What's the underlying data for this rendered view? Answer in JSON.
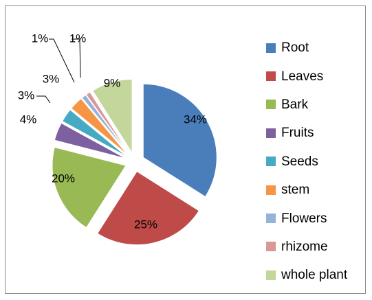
{
  "chart_data": {
    "type": "pie",
    "exploded": true,
    "start_angle_deg": 0,
    "direction": "clockwise",
    "legend_position": "right",
    "slices": [
      {
        "label": "Root",
        "value": 34,
        "display": "34%",
        "color": "#4a7ebb"
      },
      {
        "label": "Leaves",
        "value": 25,
        "display": "25%",
        "color": "#be4b48"
      },
      {
        "label": "Bark",
        "value": 20,
        "display": "20%",
        "color": "#98b954"
      },
      {
        "label": "Fruits",
        "value": 4,
        "display": "4%",
        "color": "#7d60a0"
      },
      {
        "label": "Seeds",
        "value": 3,
        "display": "3%",
        "color": "#46aac5"
      },
      {
        "label": "stem",
        "value": 3,
        "display": "3%",
        "color": "#f69545"
      },
      {
        "label": "Flowers",
        "value": 1,
        "display": "1%",
        "color": "#95b3d7"
      },
      {
        "label": "rhizome",
        "value": 1,
        "display": "1%",
        "color": "#d99795"
      },
      {
        "label": "whole plant",
        "value": 9,
        "display": "9%",
        "color": "#c3d69b"
      }
    ]
  }
}
